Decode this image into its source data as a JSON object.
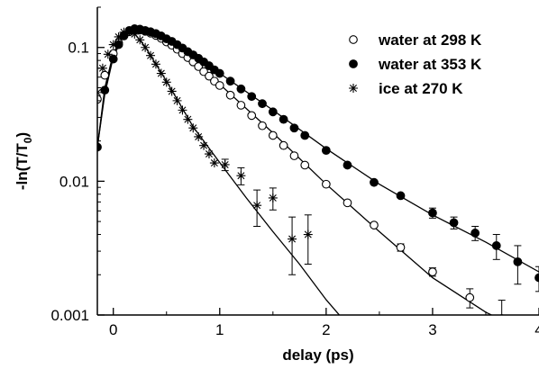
{
  "chart_data": {
    "type": "scatter",
    "title": "",
    "xlabel": "delay (ps)",
    "ylabel": "-ln(T/T0)",
    "ylabel_main": "-ln(T/T",
    "ylabel_sub": "0",
    "ylabel_close": ")",
    "xlim": [
      -0.15,
      4.0
    ],
    "ylim": [
      0.001,
      0.2
    ],
    "yscale": "log",
    "xticks": [
      0,
      1,
      2,
      3,
      4
    ],
    "xtick_labels": [
      "0",
      "1",
      "2",
      "3",
      "4"
    ],
    "yticks": [
      0.001,
      0.01,
      0.1
    ],
    "ytick_labels": [
      "0.001",
      "0.01",
      "0.1"
    ],
    "grid": false,
    "legend_position": "top-right",
    "series": [
      {
        "name": "water at 298 K",
        "marker": "open-circle",
        "x": [
          -0.15,
          -0.08,
          0.0,
          0.05,
          0.1,
          0.15,
          0.2,
          0.25,
          0.3,
          0.35,
          0.4,
          0.45,
          0.5,
          0.55,
          0.6,
          0.65,
          0.7,
          0.75,
          0.8,
          0.85,
          0.9,
          0.95,
          1.0,
          1.1,
          1.2,
          1.3,
          1.4,
          1.5,
          1.6,
          1.7,
          1.8,
          2.0,
          2.2,
          2.45,
          2.7,
          3.0,
          3.35,
          3.65
        ],
        "y": [
          0.041,
          0.062,
          0.09,
          0.108,
          0.122,
          0.131,
          0.135,
          0.135,
          0.132,
          0.128,
          0.123,
          0.117,
          0.11,
          0.104,
          0.097,
          0.09,
          0.084,
          0.078,
          0.072,
          0.066,
          0.061,
          0.056,
          0.052,
          0.044,
          0.037,
          0.031,
          0.026,
          0.022,
          0.0185,
          0.0155,
          0.0132,
          0.0095,
          0.0069,
          0.0047,
          0.0032,
          0.0021,
          0.00135,
          0.00094
        ],
        "err": [
          0,
          0,
          0,
          0,
          0,
          0,
          0,
          0,
          0,
          0,
          0,
          0,
          0,
          0,
          0,
          0,
          0,
          0,
          0,
          0,
          0,
          0,
          0,
          0,
          0,
          0,
          0,
          0,
          0,
          0,
          0,
          0,
          0,
          0,
          0.0002,
          0.00015,
          0.00022,
          0.00035
        ]
      },
      {
        "name": "water at 353 K",
        "marker": "filled-circle",
        "x": [
          -0.15,
          -0.08,
          0.0,
          0.05,
          0.1,
          0.15,
          0.2,
          0.25,
          0.3,
          0.35,
          0.4,
          0.45,
          0.5,
          0.55,
          0.6,
          0.65,
          0.7,
          0.75,
          0.8,
          0.85,
          0.9,
          0.95,
          1.0,
          1.1,
          1.2,
          1.3,
          1.4,
          1.5,
          1.6,
          1.7,
          1.8,
          2.0,
          2.2,
          2.45,
          2.7,
          3.0,
          3.2,
          3.4,
          3.6,
          3.8,
          4.0
        ],
        "y": [
          0.018,
          0.048,
          0.082,
          0.105,
          0.123,
          0.134,
          0.138,
          0.137,
          0.134,
          0.131,
          0.127,
          0.122,
          0.116,
          0.111,
          0.105,
          0.099,
          0.093,
          0.088,
          0.083,
          0.078,
          0.073,
          0.068,
          0.064,
          0.056,
          0.049,
          0.043,
          0.038,
          0.033,
          0.029,
          0.025,
          0.022,
          0.017,
          0.0132,
          0.0098,
          0.0078,
          0.0058,
          0.0049,
          0.0041,
          0.0033,
          0.0025,
          0.0019
        ],
        "err": [
          0,
          0,
          0,
          0,
          0,
          0,
          0,
          0,
          0,
          0,
          0,
          0,
          0,
          0,
          0,
          0,
          0,
          0,
          0,
          0,
          0,
          0,
          0,
          0,
          0,
          0,
          0,
          0,
          0,
          0,
          0,
          0,
          0,
          0,
          0,
          0.0005,
          0.0005,
          0.0005,
          0.0007,
          0.0008,
          0.0004
        ]
      },
      {
        "name": "ice at 270 K",
        "marker": "asterisk",
        "x": [
          -0.15,
          -0.1,
          -0.05,
          0.0,
          0.05,
          0.1,
          0.15,
          0.2,
          0.25,
          0.3,
          0.35,
          0.4,
          0.45,
          0.5,
          0.55,
          0.6,
          0.65,
          0.7,
          0.75,
          0.8,
          0.85,
          0.9,
          0.95,
          1.05,
          1.2,
          1.35,
          1.5,
          1.68,
          1.83
        ],
        "y": [
          0.046,
          0.07,
          0.089,
          0.105,
          0.12,
          0.13,
          0.132,
          0.126,
          0.114,
          0.1,
          0.087,
          0.075,
          0.064,
          0.055,
          0.047,
          0.04,
          0.034,
          0.029,
          0.025,
          0.0215,
          0.0185,
          0.016,
          0.0137,
          0.0133,
          0.011,
          0.0066,
          0.0075,
          0.0037,
          0.004
        ],
        "err": [
          0,
          0,
          0,
          0,
          0,
          0,
          0,
          0,
          0,
          0,
          0,
          0,
          0,
          0,
          0,
          0,
          0,
          0,
          0,
          0,
          0,
          0,
          0,
          0.0013,
          0.0016,
          0.002,
          0.0014,
          0.0017,
          0.0016
        ]
      }
    ],
    "fit_lines": [
      {
        "name": "water at 298 K fit",
        "x": [
          -0.15,
          -0.08,
          0.0,
          0.1,
          0.2,
          0.25,
          0.35,
          0.5,
          0.7,
          1.0,
          1.5,
          2.0,
          2.5,
          3.0,
          3.5,
          3.92
        ],
        "y": [
          0.018,
          0.045,
          0.085,
          0.124,
          0.136,
          0.136,
          0.128,
          0.11,
          0.085,
          0.053,
          0.023,
          0.0095,
          0.0042,
          0.0019,
          0.00105,
          0.00072
        ]
      },
      {
        "name": "water at 353 K fit",
        "x": [
          -0.15,
          -0.08,
          0.0,
          0.1,
          0.2,
          0.25,
          0.35,
          0.5,
          0.7,
          1.0,
          1.5,
          2.0,
          2.5,
          3.0,
          3.5,
          4.0
        ],
        "y": [
          0.018,
          0.047,
          0.087,
          0.126,
          0.139,
          0.139,
          0.132,
          0.116,
          0.093,
          0.064,
          0.034,
          0.0175,
          0.0095,
          0.0056,
          0.0035,
          0.0021
        ]
      },
      {
        "name": "ice at 270 K fit",
        "x": [
          -0.15,
          -0.08,
          0.0,
          0.1,
          0.15,
          0.2,
          0.3,
          0.5,
          0.75,
          1.0,
          1.25,
          1.5,
          1.75,
          2.0,
          2.2
        ],
        "y": [
          0.018,
          0.05,
          0.09,
          0.128,
          0.134,
          0.127,
          0.101,
          0.056,
          0.0255,
          0.0138,
          0.0075,
          0.0042,
          0.0024,
          0.0013,
          0.00085
        ]
      }
    ]
  }
}
